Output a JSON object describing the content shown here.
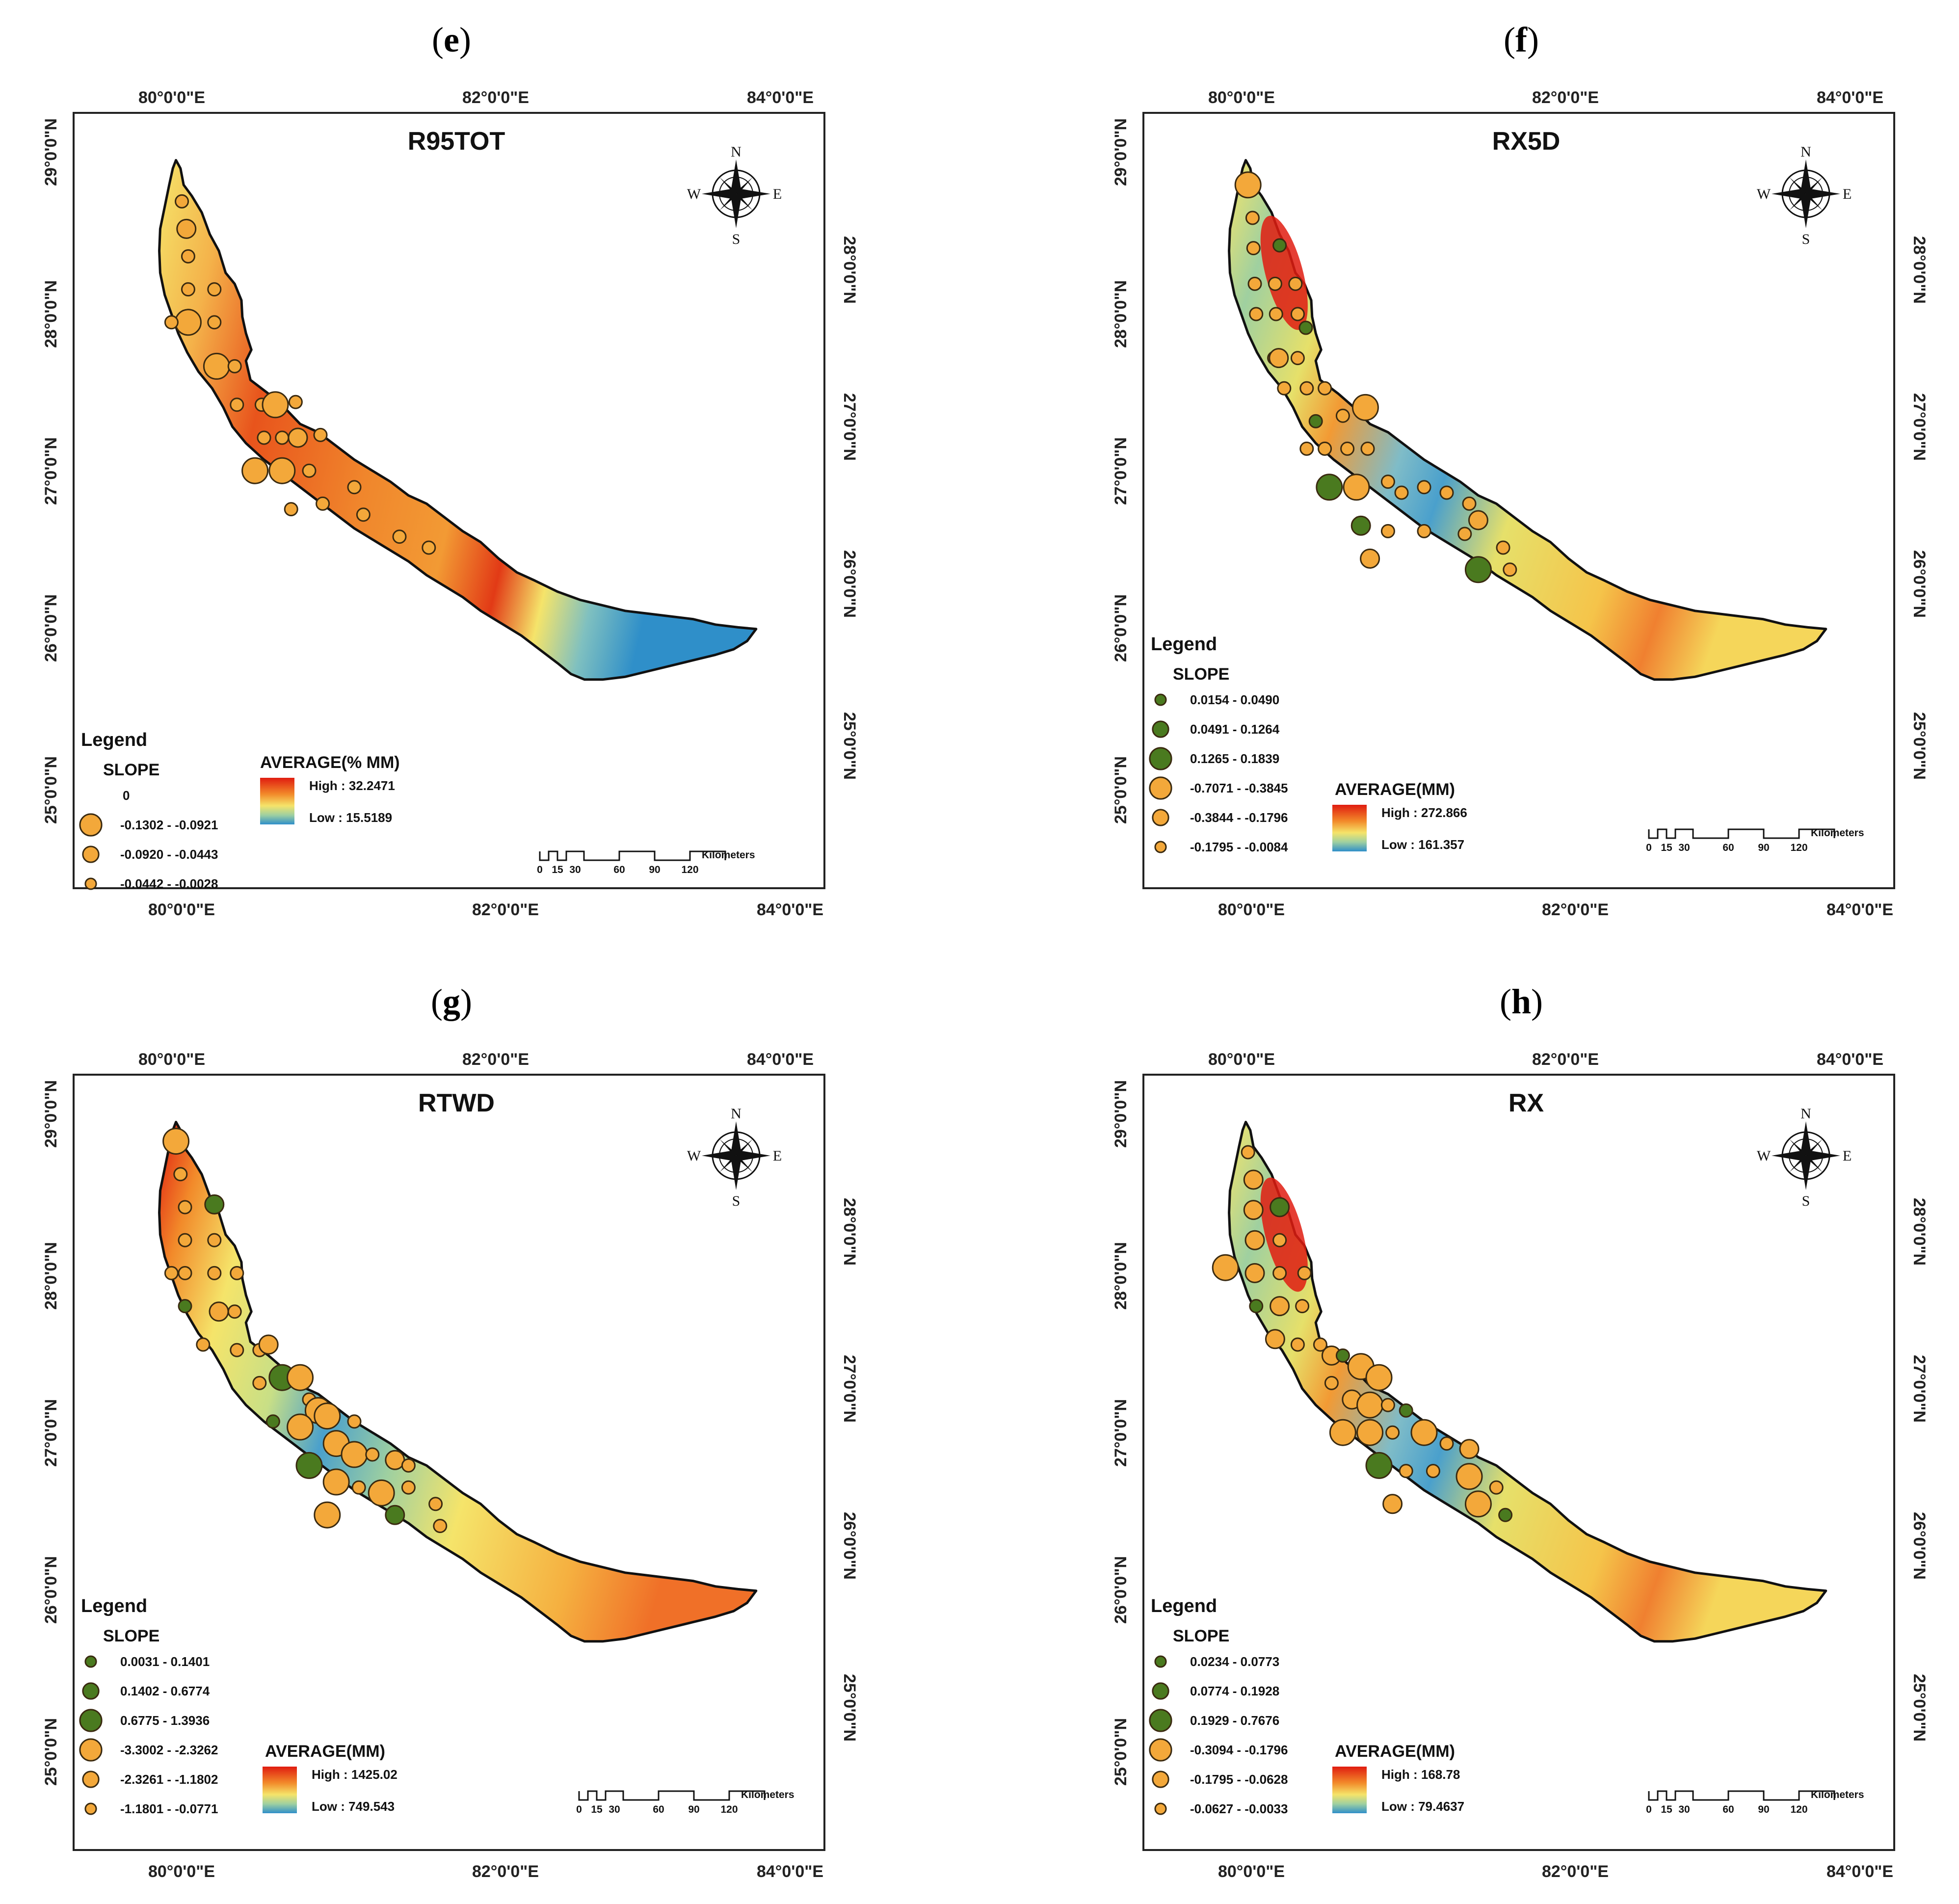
{
  "colors": {
    "high": "#e01c10",
    "mid_orange": "#f28a2a",
    "yellow": "#f5e46a",
    "low": "#2f8fc9",
    "marker_orange": "#f3a83a",
    "marker_green": "#4a7a1f"
  },
  "panels": [
    {
      "id": "e",
      "label": "e",
      "title": "R95TOT",
      "top_ticks": [
        "80°0'0\"E",
        "82°0'0\"E",
        "84°0'0\"E"
      ],
      "bottom_ticks": [
        "80°0'0\"E",
        "82°0'0\"E",
        "84°0'0\"E"
      ],
      "left_ticks": [
        "29°0'0\"N",
        "28°0'0\"N",
        "27°0'0\"N",
        "26°0'0\"N",
        "25°0'0\"N"
      ],
      "right_ticks": [
        "28°0'0\"N",
        "27°0'0\"N",
        "26°0'0\"N",
        "25°0'0\"N"
      ],
      "legend_title": "Legend",
      "slope_title": "SLOPE",
      "slope_items": [
        {
          "label": "0",
          "kind": "none",
          "size": 0
        },
        {
          "label": "-0.1302 - -0.0921",
          "kind": "orange",
          "size": 3
        },
        {
          "label": "-0.0920 - -0.0443",
          "kind": "orange",
          "size": 2
        },
        {
          "label": "-0.0442 - -0.0028",
          "kind": "orange",
          "size": 1
        }
      ],
      "average_title": "AVERAGE(% MM)",
      "high_label": "High : 32.2471",
      "low_label": "Low : 15.5189",
      "ramp": "e",
      "scale_numbers": [
        "0",
        "15",
        "30",
        "60",
        "90",
        "120"
      ],
      "scale_unit": "Kilometers",
      "compass": {
        "n": "N",
        "s": "S",
        "e": "E",
        "w": "W"
      }
    },
    {
      "id": "f",
      "label": "f",
      "title": "RX5D",
      "top_ticks": [
        "80°0'0\"E",
        "82°0'0\"E",
        "84°0'0\"E"
      ],
      "bottom_ticks": [
        "80°0'0\"E",
        "82°0'0\"E",
        "84°0'0\"E"
      ],
      "left_ticks": [
        "29°0'0\"N",
        "28°0'0\"N",
        "27°0'0\"N",
        "26°0'0\"N",
        "25°0'0\"N"
      ],
      "right_ticks": [
        "28°0'0\"N",
        "27°0'0\"N",
        "26°0'0\"N",
        "25°0'0\"N"
      ],
      "legend_title": "Legend",
      "slope_title": "SLOPE",
      "slope_items": [
        {
          "label": "0.0154 - 0.0490",
          "kind": "green",
          "size": 1
        },
        {
          "label": "0.0491 - 0.1264",
          "kind": "green",
          "size": 2
        },
        {
          "label": "0.1265 - 0.1839",
          "kind": "green",
          "size": 3
        },
        {
          "label": "-0.7071 - -0.3845",
          "kind": "orange",
          "size": 3
        },
        {
          "label": "-0.3844 - -0.1796",
          "kind": "orange",
          "size": 2
        },
        {
          "label": "-0.1795 - -0.0084",
          "kind": "orange",
          "size": 1
        }
      ],
      "average_title": "AVERAGE(MM)",
      "high_label": "High : 272.866",
      "low_label": "Low : 161.357",
      "ramp": "f",
      "scale_numbers": [
        "0",
        "15",
        "30",
        "60",
        "90",
        "120"
      ],
      "scale_unit": "Kilometers",
      "compass": {
        "n": "N",
        "s": "S",
        "e": "E",
        "w": "W"
      }
    },
    {
      "id": "g",
      "label": "g",
      "title": "RTWD",
      "top_ticks": [
        "80°0'0\"E",
        "82°0'0\"E",
        "84°0'0\"E"
      ],
      "bottom_ticks": [
        "80°0'0\"E",
        "82°0'0\"E",
        "84°0'0\"E"
      ],
      "left_ticks": [
        "29°0'0\"N",
        "28°0'0\"N",
        "27°0'0\"N",
        "26°0'0\"N",
        "25°0'0\"N"
      ],
      "right_ticks": [
        "28°0'0\"N",
        "27°0'0\"N",
        "26°0'0\"N",
        "25°0'0\"N"
      ],
      "legend_title": "Legend",
      "slope_title": "SLOPE",
      "slope_items": [
        {
          "label": "0.0031 - 0.1401",
          "kind": "green",
          "size": 1
        },
        {
          "label": "0.1402 - 0.6774",
          "kind": "green",
          "size": 2
        },
        {
          "label": "0.6775 - 1.3936",
          "kind": "green",
          "size": 3
        },
        {
          "label": "-3.3002 - -2.3262",
          "kind": "orange",
          "size": 3
        },
        {
          "label": "-2.3261 - -1.1802",
          "kind": "orange",
          "size": 2
        },
        {
          "label": "-1.1801 - -0.0771",
          "kind": "orange",
          "size": 1
        }
      ],
      "average_title": "AVERAGE(MM)",
      "high_label": "High : 1425.02",
      "low_label": "Low : 749.543",
      "ramp": "g",
      "scale_numbers": [
        "0",
        "15",
        "30",
        "60",
        "90",
        "120"
      ],
      "scale_unit": "Kilometers",
      "compass": {
        "n": "N",
        "s": "S",
        "e": "E",
        "w": "W"
      }
    },
    {
      "id": "h",
      "label": "h",
      "title": "RX",
      "top_ticks": [
        "80°0'0\"E",
        "82°0'0\"E",
        "84°0'0\"E"
      ],
      "bottom_ticks": [
        "80°0'0\"E",
        "82°0'0\"E",
        "84°0'0\"E"
      ],
      "left_ticks": [
        "29°0'0\"N",
        "28°0'0\"N",
        "27°0'0\"N",
        "26°0'0\"N",
        "25°0'0\"N"
      ],
      "right_ticks": [
        "28°0'0\"N",
        "27°0'0\"N",
        "26°0'0\"N",
        "25°0'0\"N"
      ],
      "legend_title": "Legend",
      "slope_title": "SLOPE",
      "slope_items": [
        {
          "label": "0.0234 - 0.0773",
          "kind": "green",
          "size": 1
        },
        {
          "label": "0.0774 - 0.1928",
          "kind": "green",
          "size": 2
        },
        {
          "label": "0.1929 - 0.7676",
          "kind": "green",
          "size": 3
        },
        {
          "label": "-0.3094 - -0.1796",
          "kind": "orange",
          "size": 3
        },
        {
          "label": "-0.1795 - -0.0628",
          "kind": "orange",
          "size": 2
        },
        {
          "label": "-0.0627 - -0.0033",
          "kind": "orange",
          "size": 1
        }
      ],
      "average_title": "AVERAGE(MM)",
      "high_label": "High : 168.78",
      "low_label": "Low : 79.4637",
      "ramp": "f",
      "scale_numbers": [
        "0",
        "15",
        "30",
        "60",
        "90",
        "120"
      ],
      "scale_unit": "Kilometers",
      "compass": {
        "n": "N",
        "s": "S",
        "e": "E",
        "w": "W"
      }
    }
  ]
}
